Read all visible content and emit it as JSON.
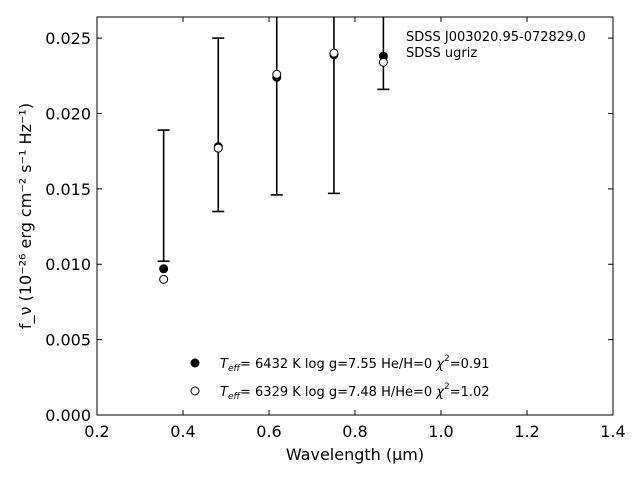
{
  "chart_data": {
    "type": "scatter",
    "xlabel": "Wavelength (μm)",
    "ylabel": "f_ν (10⁻²⁶ erg cm⁻² s⁻¹ Hz⁻¹)",
    "xlim": [
      0.2,
      1.4
    ],
    "ylim": [
      0.0,
      0.0264
    ],
    "xticks": [
      "0.2",
      "0.4",
      "0.6",
      "0.8",
      "1.0",
      "1.2",
      "1.4"
    ],
    "yticks": [
      "0.000",
      "0.005",
      "0.010",
      "0.015",
      "0.020",
      "0.025"
    ],
    "grid": false,
    "annotation": [
      "SDSS J003020.95-072829.0",
      "SDSS ugriz"
    ],
    "observed": {
      "x": [
        0.355,
        0.482,
        0.618,
        0.751,
        0.866
      ],
      "y": [
        0.0097,
        0.0178,
        0.0224,
        0.0239,
        0.0238
      ],
      "err_low": [
        0.0102,
        0.0135,
        0.0146,
        0.0147,
        0.0216
      ],
      "err_high": [
        0.0189,
        0.025,
        0.03,
        0.03,
        0.03
      ]
    },
    "series": [
      {
        "label_parts": [
          "T",
          "eff",
          "= 6432 K log g=7.55 He/H=0 ",
          "χ",
          "2",
          "=0.91"
        ],
        "marker": "filled",
        "x": [
          0.355,
          0.482,
          0.618,
          0.751,
          0.866
        ],
        "y": [
          0.0097,
          0.0178,
          0.0224,
          0.0239,
          0.0238
        ]
      },
      {
        "label_parts": [
          "T",
          "eff",
          "= 6329 K log g=7.48 H/He=0 ",
          "χ",
          "2",
          "=1.02"
        ],
        "marker": "open",
        "x": [
          0.355,
          0.482,
          0.618,
          0.751,
          0.866
        ],
        "y": [
          0.009,
          0.0177,
          0.0226,
          0.024,
          0.0234
        ]
      }
    ],
    "legend_position": "bottom-center"
  }
}
